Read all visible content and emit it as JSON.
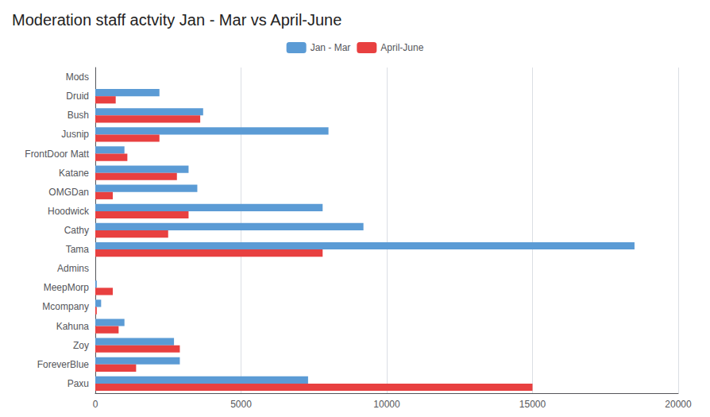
{
  "chart_data": {
    "type": "bar",
    "orientation": "horizontal",
    "title": "Moderation staff actvity Jan - Mar vs April-June",
    "categories": [
      "Mods",
      "Druid",
      "Bush",
      "Jusnip",
      "FrontDoor Matt",
      "Katane",
      "OMGDan",
      "Hoodwick",
      "Cathy",
      "Tama",
      "Admins",
      "MeepMorp",
      "Mcompany",
      "Kahuna",
      "Zoy",
      "ForeverBlue",
      "Paxu"
    ],
    "series": [
      {
        "name": "Jan - Mar",
        "color": "#5B9BD5",
        "values": [
          0,
          2200,
          3700,
          8000,
          1000,
          3200,
          3500,
          7800,
          9200,
          18500,
          0,
          50,
          200,
          1000,
          2700,
          2900,
          7300
        ]
      },
      {
        "name": "April-June",
        "color": "#E84040",
        "values": [
          0,
          700,
          3600,
          2200,
          1100,
          2800,
          600,
          3200,
          2500,
          7800,
          0,
          600,
          50,
          800,
          2900,
          1400,
          15000
        ]
      }
    ],
    "xlim": [
      0,
      20000
    ],
    "xticks": [
      0,
      5000,
      10000,
      15000,
      20000
    ],
    "grid": true,
    "legend": "top"
  }
}
